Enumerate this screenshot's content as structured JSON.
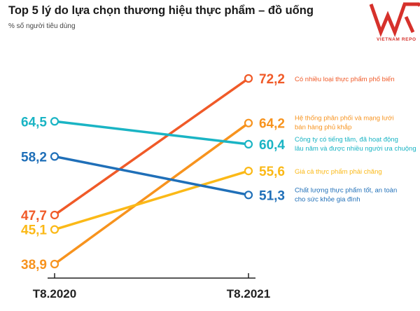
{
  "header": {
    "title": "Top 5 lý do lựa chọn thương hiệu thực phẩm – đồ uống",
    "subtitle": "% số người tiêu dùng"
  },
  "logo": {
    "text": "VIETNAM REPO",
    "color": "#d6312b"
  },
  "chart_data": {
    "type": "line",
    "categories": [
      "T8.2020",
      "T8.2021"
    ],
    "ylim": [
      36,
      75
    ],
    "grid": false,
    "legend": "right-inline",
    "series": [
      {
        "name": "Có nhiều loại thực phẩm phổ biến",
        "label_lines": [
          "Có nhiều loại thực phẩm phổ biến"
        ],
        "values": [
          47.7,
          72.2
        ],
        "labels": [
          "47,7",
          "72,2"
        ],
        "color": "#f05a28"
      },
      {
        "name": "Hệ thống phân phối và mạng lưới bán hàng phủ khắp",
        "label_lines": [
          "Hệ thống phân phối và mạng lưới",
          "bán hàng phủ khắp"
        ],
        "values": [
          38.9,
          64.2
        ],
        "labels": [
          "38,9",
          "64,2"
        ],
        "color": "#f7931e"
      },
      {
        "name": "Công ty có tiếng tăm, đã hoạt động lâu năm và được nhiều người ưa chuộng",
        "label_lines": [
          "Công ty có tiếng tăm, đã hoạt động",
          "lâu năm và được nhiều người ưa chuộng"
        ],
        "values": [
          64.5,
          60.4
        ],
        "labels": [
          "64,5",
          "60,4"
        ],
        "color": "#1ab4c4"
      },
      {
        "name": "Giá cả thực phẩm phải chăng",
        "label_lines": [
          "Giá cả thực phẩm phải chăng"
        ],
        "values": [
          45.1,
          55.6
        ],
        "labels": [
          "45,1",
          "55,6"
        ],
        "color": "#fbb917"
      },
      {
        "name": "Chất lượng thực phẩm tốt, an toàn cho sức khỏe gia đình",
        "label_lines": [
          "Chất lượng thực phẩm tốt, an toàn",
          "cho sức khỏe gia đình"
        ],
        "values": [
          58.2,
          51.3
        ],
        "labels": [
          "58,2",
          "51,3"
        ],
        "color": "#1f6fb8"
      }
    ]
  }
}
